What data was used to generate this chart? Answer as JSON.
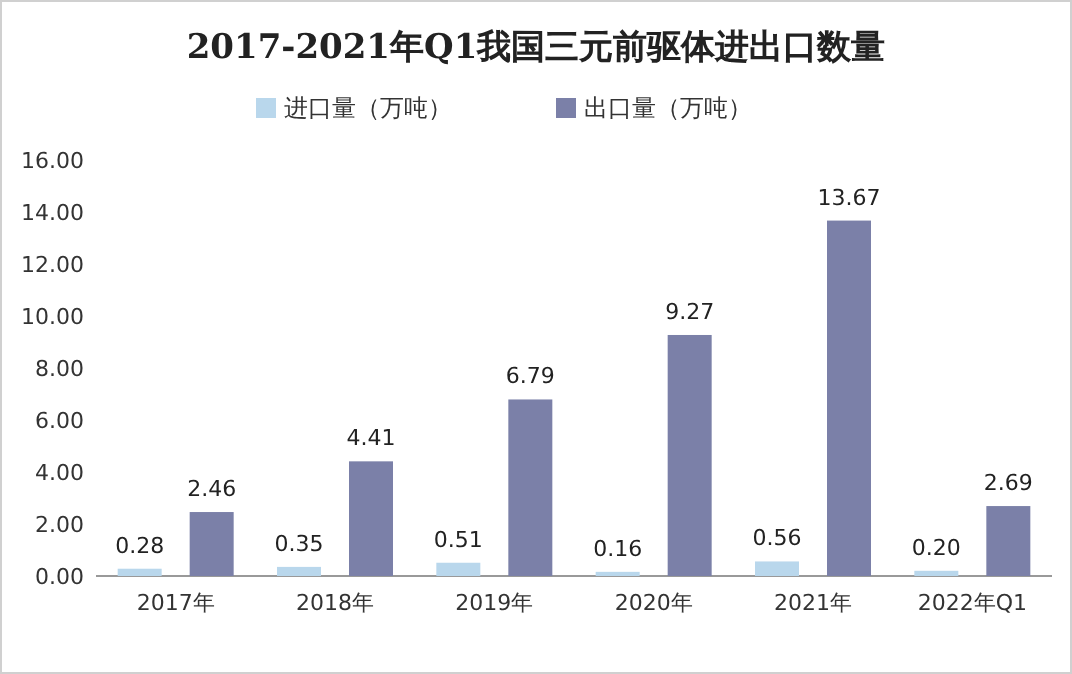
{
  "chart_data": {
    "type": "bar",
    "title": "2017-2021年Q1我国三元前驱体进出口数量",
    "categories": [
      "2017年",
      "2018年",
      "2019年",
      "2020年",
      "2021年",
      "2022年Q1"
    ],
    "series": [
      {
        "name": "进口量（万吨）",
        "color": "#b9d7ec",
        "values": [
          0.28,
          0.35,
          0.51,
          0.16,
          0.56,
          0.2
        ],
        "value_labels": [
          "0.28",
          "0.35",
          "0.51",
          "0.16",
          "0.56",
          "0.20"
        ]
      },
      {
        "name": "出口量（万吨）",
        "color": "#7b80a8",
        "values": [
          2.46,
          4.41,
          6.79,
          9.27,
          13.67,
          2.69
        ],
        "value_labels": [
          "2.46",
          "4.41",
          "6.79",
          "9.27",
          "13.67",
          "2.69"
        ]
      }
    ],
    "ylim": [
      0,
      16
    ],
    "yticks": [
      {
        "value": 0,
        "label": "0.00"
      },
      {
        "value": 2,
        "label": "2.00"
      },
      {
        "value": 4,
        "label": "4.00"
      },
      {
        "value": 6,
        "label": "6.00"
      },
      {
        "value": 8,
        "label": "8.00"
      },
      {
        "value": 10,
        "label": "10.00"
      },
      {
        "value": 12,
        "label": "12.00"
      },
      {
        "value": 14,
        "label": "14.00"
      },
      {
        "value": 16,
        "label": "16.00"
      }
    ],
    "grid": false,
    "legend": "top"
  }
}
